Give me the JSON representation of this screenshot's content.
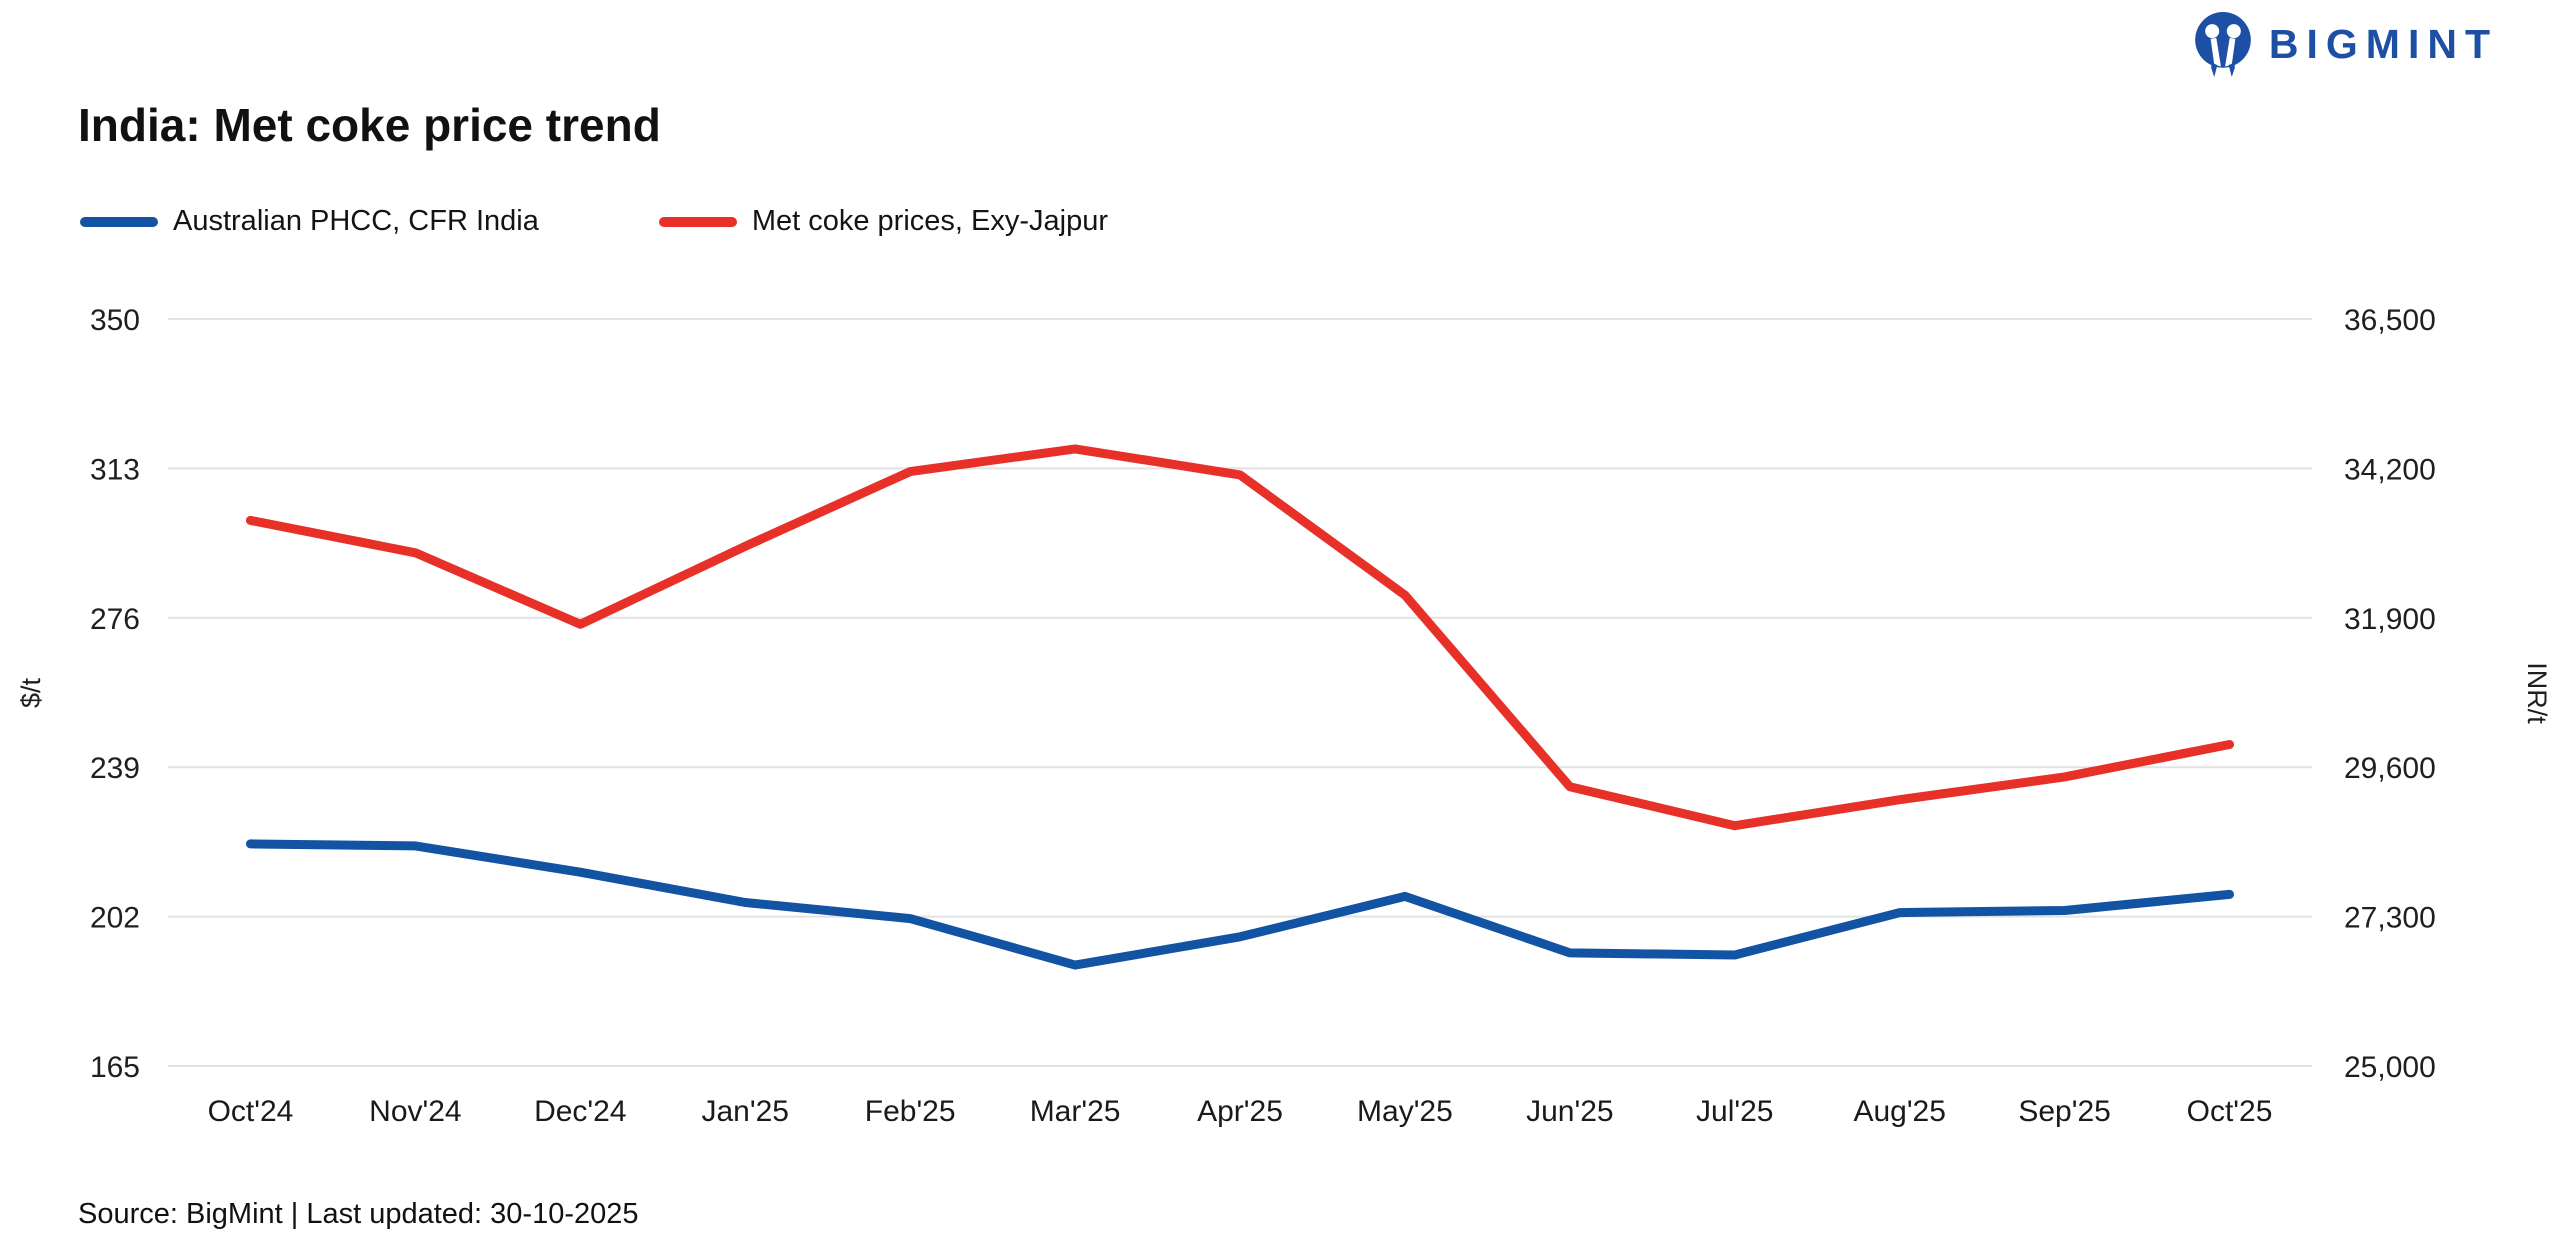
{
  "logo": {
    "text": "BIGMINT",
    "icon": "bigmint-owl-m-icon",
    "color": "#1d50a5"
  },
  "header": {
    "title": "India: Met coke price trend"
  },
  "legend": [
    {
      "label": "Australian PHCC, CFR India",
      "color": "#1253a3"
    },
    {
      "label": "Met coke prices, Exy-Jajpur",
      "color": "#e73128"
    }
  ],
  "footer": {
    "source": "Source: BigMint | Last updated: 30-10-2025"
  },
  "chart_data": {
    "type": "line",
    "title": "India: Met coke price trend",
    "categories": [
      "Oct'24",
      "Nov'24",
      "Dec'24",
      "Jan'25",
      "Feb'25",
      "Mar'25",
      "Apr'25",
      "May'25",
      "Jun'25",
      "Jul'25",
      "Aug'25",
      "Sep'25",
      "Oct'25"
    ],
    "series": [
      {
        "name": "Australian PHCC, CFR India",
        "axis": "left",
        "unit": "$/t",
        "color": "#1253a3",
        "values": [
          220,
          219.5,
          213,
          205.5,
          201.5,
          190,
          197,
          207,
          193,
          192.5,
          203,
          203.5,
          207.5
        ]
      },
      {
        "name": "Met coke prices, Exy-Jajpur",
        "axis": "right",
        "unit": "INR/t",
        "color": "#e73128",
        "values": [
          33400,
          32900,
          31800,
          33000,
          34150,
          34500,
          34100,
          32250,
          29300,
          28700,
          29100,
          29450,
          29950
        ]
      }
    ],
    "left_axis": {
      "label": "$/t",
      "min": 165,
      "max": 350,
      "ticks": [
        350,
        313,
        276,
        239,
        202,
        165
      ],
      "tick_labels": [
        "350",
        "313",
        "276",
        "239",
        "202",
        "165"
      ]
    },
    "right_axis": {
      "label": "INR/t",
      "min": 25000,
      "max": 36500,
      "ticks": [
        36500,
        34200,
        31900,
        29600,
        27300,
        25000
      ],
      "tick_labels": [
        "36,500",
        "34,200",
        "31,900",
        "29,600",
        "27,300",
        "25,000"
      ]
    },
    "grid": true,
    "legend_position": "top-left"
  }
}
